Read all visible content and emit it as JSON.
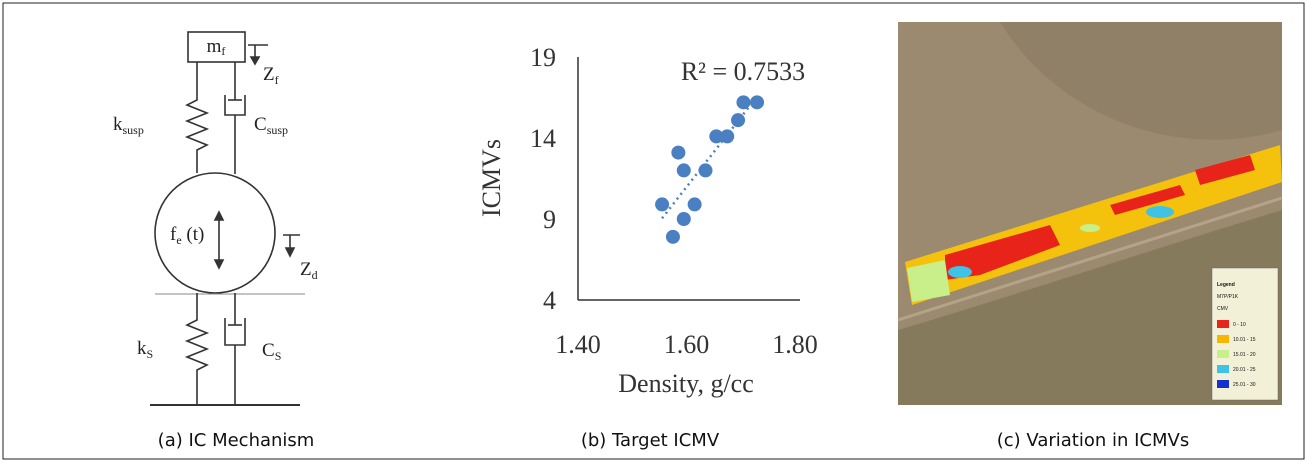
{
  "mechanism": {
    "caption": "(a) IC Mechanism",
    "labels": [
      {
        "base": "m",
        "sub": "f"
      },
      {
        "base": "Z",
        "sub": "f"
      },
      {
        "base": "k",
        "sub": "susp"
      },
      {
        "base": "C",
        "sub": "susp"
      },
      {
        "base": "f",
        "sub": "e",
        "suffix": " (t)"
      },
      {
        "base": "Z",
        "sub": "d"
      },
      {
        "base": "k",
        "sub": "S"
      },
      {
        "base": "C",
        "sub": "S"
      }
    ]
  },
  "chart_data": {
    "type": "scatter",
    "caption": "(b) Target ICMV",
    "annotation": "R² = 0.7533",
    "x_label": "Density, g/cc",
    "y_label": "ICMVs",
    "x": [
      1.555,
      1.585,
      1.595,
      1.575,
      1.595,
      1.615,
      1.635,
      1.655,
      1.675,
      1.695,
      1.705,
      1.73
    ],
    "series": [
      {
        "color": "#4a7fc1",
        "values": [
          9.9,
          13.1,
          12.0,
          7.9,
          9.0,
          9.9,
          12.0,
          14.1,
          14.1,
          15.1,
          16.2,
          16.2
        ]
      }
    ],
    "trendline": true,
    "xlim": [
      1.4,
      1.8
    ],
    "xticks": [
      {
        "value": 1.4,
        "label": "1.40"
      },
      {
        "value": 1.6,
        "label": "1.60"
      },
      {
        "value": 1.8,
        "label": "1.80"
      }
    ],
    "ylim": [
      4,
      19
    ],
    "yticks": [
      4,
      9,
      14,
      19
    ]
  },
  "map": {
    "caption": "(c) Variation in ICMVs",
    "legend": {
      "title": "Legend",
      "layer": "M7P/P1K",
      "field": "CMV",
      "items": [
        {
          "label": "0 - 10",
          "color": "#e8231a"
        },
        {
          "label": "10.01 - 15",
          "color": "#f5b800"
        },
        {
          "label": "15.01 - 20",
          "color": "#c8ef8a"
        },
        {
          "label": "20.01 - 25",
          "color": "#3ec3e6"
        },
        {
          "label": "25.01 - 30",
          "color": "#1530d0"
        }
      ]
    }
  }
}
